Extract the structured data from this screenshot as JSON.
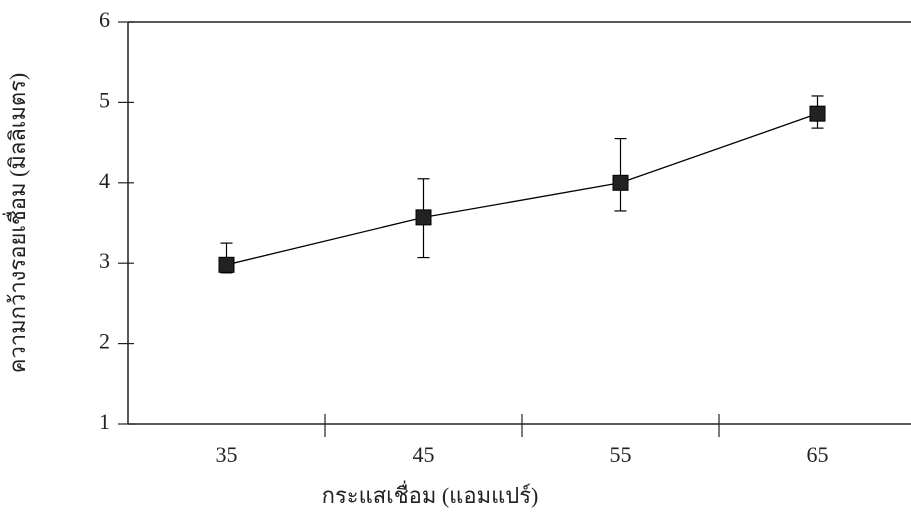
{
  "chart_data": {
    "type": "line",
    "x_label": "กระแสเชื่อม (แอมแปร์)",
    "y_label": "ความกว้างรอยเชื่อม (มิลลิเมตร)",
    "categories": [
      "35",
      "45",
      "55",
      "65"
    ],
    "series": [
      {
        "color": "#000000",
        "values": [
          2.98,
          3.57,
          4.0,
          4.86
        ],
        "errors_plus": [
          0.27,
          0.48,
          0.55,
          0.22
        ],
        "errors_minus": [
          0.1,
          0.5,
          0.35,
          0.18
        ]
      }
    ],
    "ylim": [
      1,
      6
    ],
    "yticks": [
      1,
      2,
      3,
      4,
      5,
      6
    ]
  }
}
